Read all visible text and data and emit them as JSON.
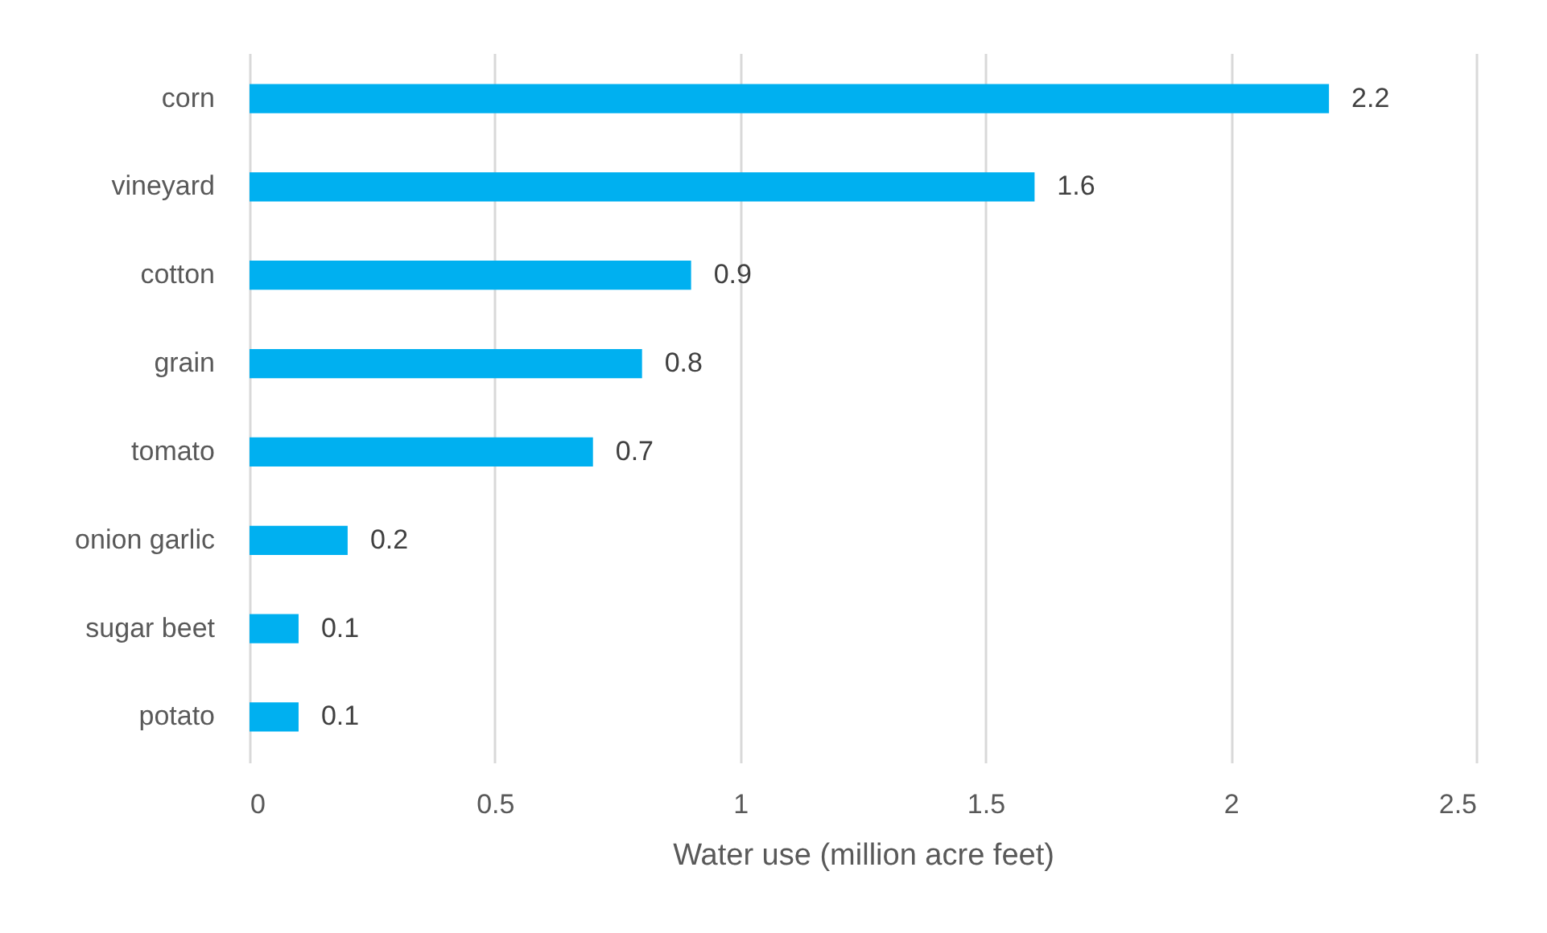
{
  "chart_data": {
    "type": "bar",
    "orientation": "horizontal",
    "xlabel": "Water use (million acre feet)",
    "categories": [
      "corn",
      "vineyard",
      "cotton",
      "grain",
      "tomato",
      "onion garlic",
      "sugar beet",
      "potato"
    ],
    "values": [
      2.2,
      1.6,
      0.9,
      0.8,
      0.7,
      0.2,
      0.1,
      0.1
    ],
    "color": "#00b0f0",
    "xlim": [
      0,
      2.5
    ],
    "xticks": [
      0,
      0.5,
      1,
      1.5,
      2,
      2.5
    ],
    "grid": "x",
    "data_labels": true
  }
}
